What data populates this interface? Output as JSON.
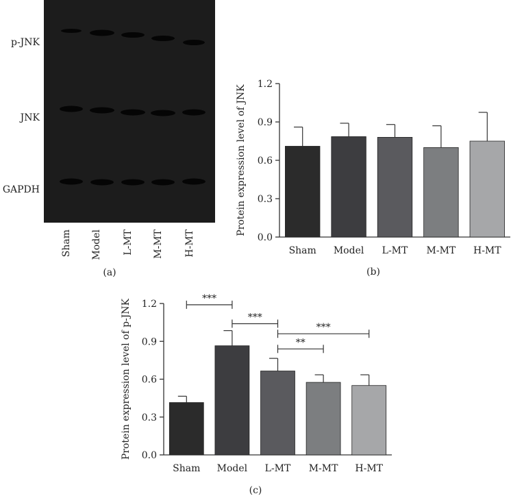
{
  "panel_labels": {
    "a": "(a)",
    "b": "(b)",
    "c": "(c)"
  },
  "blot": {
    "row_labels": [
      "p-JNK",
      "JNK",
      "GAPDH"
    ],
    "lane_labels": [
      "Sham",
      "Model",
      "L-MT",
      "M-MT",
      "H-MT"
    ],
    "background_color": "#1c1c1c",
    "band_color": "#050505"
  },
  "chart_data": [
    {
      "type": "bar",
      "panel": "b",
      "categories": [
        "Sham",
        "Model",
        "L-MT",
        "M-MT",
        "H-MT"
      ],
      "series": [
        {
          "values": [
            0.71,
            0.785,
            0.78,
            0.7,
            0.75
          ],
          "errors": [
            0.15,
            0.105,
            0.1,
            0.17,
            0.225
          ]
        }
      ],
      "ylabel": "Protein expression level of JNK",
      "ylim": [
        0,
        1.2
      ],
      "yticks": [
        "0.0",
        "0.3",
        "0.6",
        "0.9",
        "1.2"
      ],
      "colors": [
        "#2b2b2b",
        "#3d3d40",
        "#5a5a5e",
        "#7c7e80",
        "#a6a7a9"
      ]
    },
    {
      "type": "bar",
      "panel": "c",
      "categories": [
        "Sham",
        "Model",
        "L-MT",
        "M-MT",
        "H-MT"
      ],
      "series": [
        {
          "values": [
            0.415,
            0.865,
            0.665,
            0.575,
            0.55
          ],
          "errors": [
            0.05,
            0.12,
            0.1,
            0.06,
            0.085
          ]
        }
      ],
      "ylabel": "Protein expression level of p-JNK",
      "ylim": [
        0,
        1.2
      ],
      "yticks": [
        "0.0",
        "0.3",
        "0.6",
        "0.9",
        "1.2"
      ],
      "colors": [
        "#2b2b2b",
        "#3d3d40",
        "#5a5a5e",
        "#7c7e80",
        "#a6a7a9"
      ],
      "significance": [
        {
          "from": "Sham",
          "to": "Model",
          "y": 1.19,
          "label": "***"
        },
        {
          "from": "Model",
          "to": "L-MT",
          "y": 1.04,
          "label": "***"
        },
        {
          "from": "L-MT",
          "to": "H-MT",
          "y": 0.96,
          "label": "***"
        },
        {
          "from": "L-MT",
          "to": "M-MT",
          "y": 0.84,
          "label": "**"
        }
      ]
    }
  ]
}
